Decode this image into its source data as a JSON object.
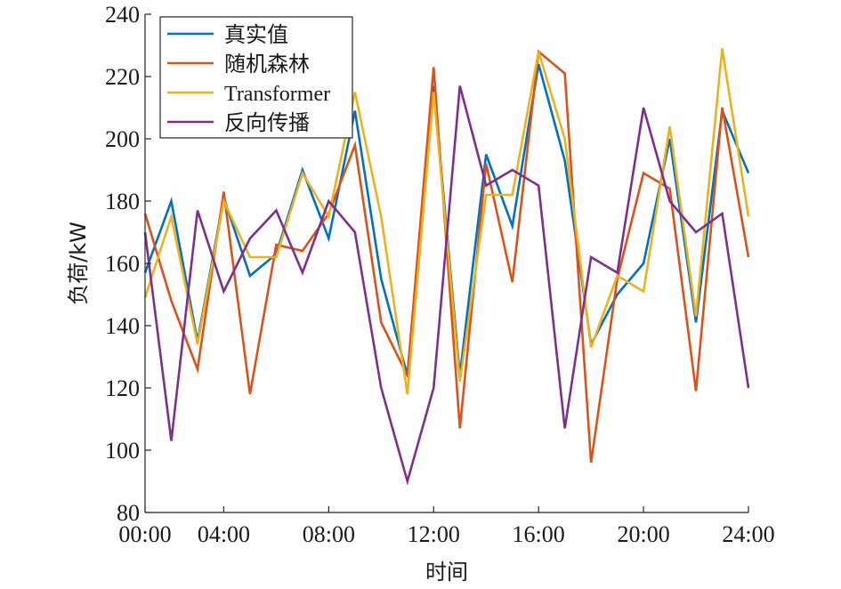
{
  "chart_data": {
    "type": "line",
    "xlabel": "时间",
    "ylabel": "负荷/kW",
    "xlim": [
      1,
      24
    ],
    "ylim": [
      80,
      240
    ],
    "x_ticks": [
      {
        "value": 4,
        "label": "04:00"
      },
      {
        "value": 8,
        "label": "08:00"
      },
      {
        "value": 12,
        "label": "12:00"
      },
      {
        "value": 16,
        "label": "16:00"
      },
      {
        "value": 20,
        "label": "20:00"
      },
      {
        "value": 24,
        "label": "24:00"
      },
      {
        "value": 1,
        "label": "00:00"
      }
    ],
    "y_ticks": [
      80,
      100,
      120,
      140,
      160,
      180,
      200,
      220,
      240
    ],
    "grid": false,
    "legend_position": "top-left",
    "x": [
      1,
      2,
      3,
      4,
      5,
      6,
      7,
      8,
      9,
      10,
      11,
      12,
      13,
      14,
      15,
      16,
      17,
      18,
      19,
      20,
      21,
      22,
      23,
      24
    ],
    "series": [
      {
        "name": "真实值",
        "color": "#0072bd",
        "values": [
          157,
          180,
          135,
          181,
          156,
          163,
          190,
          168,
          209,
          155,
          124,
          217,
          124,
          195,
          172,
          224,
          193,
          134,
          150,
          160,
          200,
          141,
          209,
          189
        ]
      },
      {
        "name": "随机森林",
        "color": "#d95319",
        "values": [
          176,
          148,
          126,
          183,
          118,
          166,
          164,
          176,
          198,
          141,
          124,
          223,
          107,
          192,
          154,
          228,
          221,
          96,
          155,
          189,
          184,
          119,
          210,
          162
        ]
      },
      {
        "name": "Transformer",
        "color": "#edb120",
        "values": [
          149,
          175,
          134,
          180,
          162,
          162,
          189,
          175,
          215,
          175,
          118,
          215,
          122,
          182,
          182,
          228,
          200,
          133,
          156,
          151,
          204,
          143,
          229,
          175
        ]
      },
      {
        "name": "反向传播",
        "color": "#7e2f8e",
        "values": [
          170,
          103,
          177,
          151,
          168,
          177,
          157,
          180,
          170,
          120,
          90,
          120,
          217,
          185,
          190,
          185,
          107,
          162,
          157,
          210,
          180,
          170,
          176,
          120
        ]
      }
    ]
  }
}
